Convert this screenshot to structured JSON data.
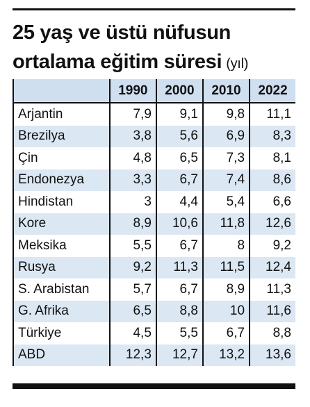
{
  "header": {
    "title": [
      "25 yaş ve üstü nüfusun",
      "ortalama eğitim süresi"
    ],
    "unit": "(yıl)"
  },
  "table": {
    "columns": [
      "",
      "1990",
      "2000",
      "2010",
      "2022"
    ],
    "rows": [
      [
        "Arjantin",
        "7,9",
        "9,1",
        "9,8",
        "11,1"
      ],
      [
        "Brezilya",
        "3,8",
        "5,6",
        "6,9",
        "8,3"
      ],
      [
        "Çin",
        "4,8",
        "6,5",
        "7,3",
        "8,1"
      ],
      [
        "Endonezya",
        "3,3",
        "6,7",
        "7,4",
        "8,6"
      ],
      [
        "Hindistan",
        "3",
        "4,4",
        "5,4",
        "6,6"
      ],
      [
        "Kore",
        "8,9",
        "10,6",
        "11,8",
        "12,6"
      ],
      [
        "Meksika",
        "5,5",
        "6,7",
        "8",
        "9,2"
      ],
      [
        "Rusya",
        "9,2",
        "11,3",
        "11,5",
        "12,4"
      ],
      [
        "S. Arabistan",
        "5,7",
        "6,7",
        "8,9",
        "11,3"
      ],
      [
        "G. Afrika",
        "6,5",
        "8,8",
        "10",
        "11,6"
      ],
      [
        "Türkiye",
        "4,5",
        "5,5",
        "6,7",
        "8,8"
      ],
      [
        "ABD",
        "12,3",
        "12,7",
        "13,2",
        "13,6"
      ]
    ]
  }
}
